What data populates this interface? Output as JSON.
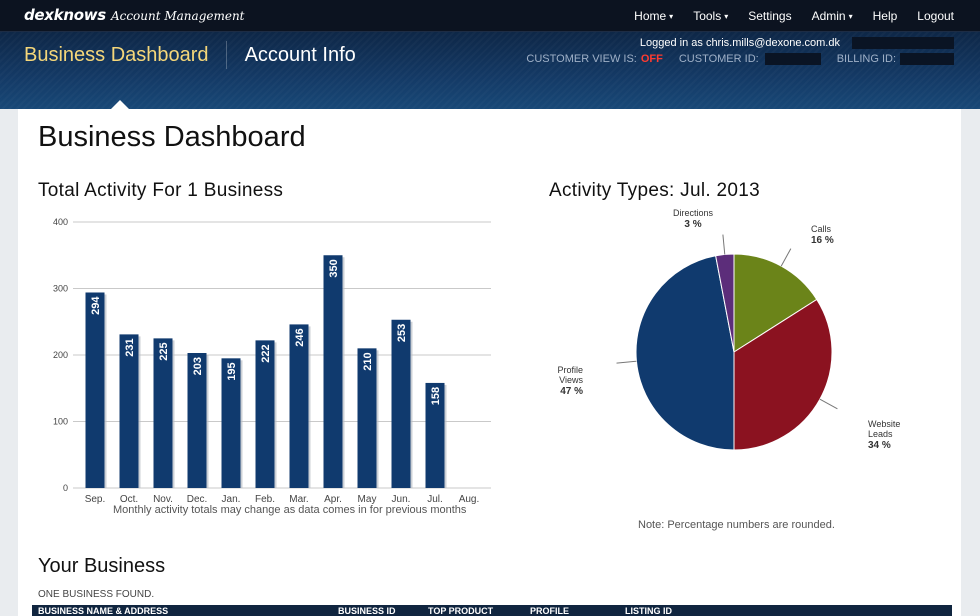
{
  "app": {
    "logo": "dexknows",
    "subtitle": "Account Management"
  },
  "topnav": {
    "items": [
      {
        "label": "Home",
        "caret": "▾"
      },
      {
        "label": "Tools",
        "caret": "▾"
      },
      {
        "label": "Settings",
        "caret": ""
      },
      {
        "label": "Admin",
        "caret": "▾"
      },
      {
        "label": "Help",
        "caret": ""
      },
      {
        "label": "Logout",
        "caret": ""
      }
    ]
  },
  "header": {
    "tabs": [
      {
        "label": "Business Dashboard",
        "active": true
      },
      {
        "label": "Account Info",
        "active": false
      }
    ],
    "logged_in": "Logged in as chris.mills@dexone.com.dk",
    "customer_view_label": "CUSTOMER VIEW IS:",
    "customer_view_value": "OFF",
    "customer_id_label": "CUSTOMER ID:",
    "billing_id_label": "BILLING ID:"
  },
  "main": {
    "title": "Business Dashboard",
    "activity_title": "Total Activity For 1 Business",
    "activity_note": "Monthly activity totals may change as data comes in for previous months",
    "types_title": "Activity Types: Jul. 2013",
    "types_note": "Note: Percentage numbers are rounded.",
    "your_business_title": "Your Business",
    "found_text": "ONE BUSINESS FOUND.",
    "table_headers": [
      "BUSINESS NAME & ADDRESS",
      "BUSINESS ID",
      "TOP PRODUCT",
      "PROFILE",
      "LISTING ID"
    ]
  },
  "colors": {
    "bar": "#103a6e",
    "calls": "#6b8419",
    "website_leads": "#8b1220",
    "profile_views": "#103a6e",
    "directions": "#5c2d7a",
    "accent_off": "#ff3b30",
    "active_tab": "#f5d77a"
  },
  "chart_data": [
    {
      "type": "bar",
      "title": "Total Activity For 1 Business",
      "categories": [
        "Sep.",
        "Oct.",
        "Nov.",
        "Dec.",
        "Jan.",
        "Feb.",
        "Mar.",
        "Apr.",
        "May",
        "Jun.",
        "Jul.",
        "Aug."
      ],
      "values": [
        294,
        231,
        225,
        203,
        195,
        222,
        246,
        350,
        210,
        253,
        158,
        null
      ],
      "ylim": [
        0,
        400
      ],
      "yticks": [
        0,
        100,
        200,
        300,
        400
      ],
      "grid": true,
      "data_labels": true
    },
    {
      "type": "pie",
      "title": "Activity Types: Jul. 2013",
      "slices": [
        {
          "name": "Calls",
          "value": 16,
          "label": "16 %"
        },
        {
          "name": "Website Leads",
          "value": 34,
          "label": "34 %"
        },
        {
          "name": "Profile Views",
          "value": 47,
          "label": "47 %"
        },
        {
          "name": "Directions",
          "value": 3,
          "label": "3 %"
        }
      ]
    }
  ]
}
